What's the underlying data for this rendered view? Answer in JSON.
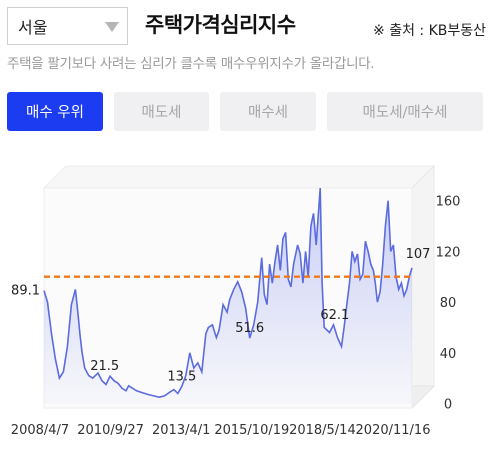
{
  "header": {
    "region": "서울",
    "title": "주택가격심리지수",
    "source": "※ 출처 : KB부동산",
    "description": "주택을 팔기보다 사려는 심리가 클수록 매수우위지수가 올라갑니다."
  },
  "tabs": [
    {
      "label": "매수 우위",
      "active": true
    },
    {
      "label": "매도세",
      "active": false
    },
    {
      "label": "매수세",
      "active": false
    },
    {
      "label": "매도세/매수세",
      "active": false
    }
  ],
  "colors": {
    "accent": "#1b3cf0",
    "line": "#5b6be0",
    "reference": "#f07818"
  },
  "chart_data": {
    "type": "area",
    "x_tick_labels": [
      "2008/4/7",
      "2010/9/27",
      "2013/4/1",
      "2015/10/19",
      "2018/5/14",
      "2020/11/16"
    ],
    "x_domain": [
      2008.27,
      2022.1
    ],
    "y_ticks": [
      0,
      40,
      80,
      120,
      160
    ],
    "ylim": [
      0,
      170
    ],
    "reference_line": 100,
    "annotations": [
      {
        "x": 2008.27,
        "y": 89.1,
        "label": "89.1"
      },
      {
        "x": 2010.55,
        "y": 21.5,
        "label": "21.5"
      },
      {
        "x": 2013.45,
        "y": 13.5,
        "label": "13.5"
      },
      {
        "x": 2016.0,
        "y": 51.6,
        "label": "51.6"
      },
      {
        "x": 2019.2,
        "y": 62.1,
        "label": "62.1"
      },
      {
        "x": 2022.1,
        "y": 107,
        "label": "107"
      }
    ],
    "series": [
      {
        "x": [
          2008.27,
          2008.4,
          2008.55,
          2008.7,
          2008.85,
          2009.0,
          2009.15,
          2009.3,
          2009.45,
          2009.55,
          2009.62,
          2009.7,
          2009.8,
          2009.95,
          2010.1,
          2010.3,
          2010.45,
          2010.6,
          2010.75,
          2010.9,
          2011.05,
          2011.2,
          2011.35,
          2011.45,
          2011.6,
          2011.75,
          2011.9,
          2012.05,
          2012.2,
          2012.4,
          2012.6,
          2012.8,
          2013.0,
          2013.15,
          2013.3,
          2013.45,
          2013.6,
          2013.75,
          2013.9,
          2014.05,
          2014.2,
          2014.35,
          2014.45,
          2014.6,
          2014.75,
          2014.85,
          2015.0,
          2015.15,
          2015.25,
          2015.4,
          2015.55,
          2015.7,
          2015.85,
          2016.0,
          2016.15,
          2016.3,
          2016.45,
          2016.55,
          2016.65,
          2016.75,
          2016.85,
          2016.95,
          2017.05,
          2017.15,
          2017.25,
          2017.35,
          2017.45,
          2017.55,
          2017.65,
          2017.8,
          2017.9,
          2018.0,
          2018.1,
          2018.2,
          2018.3,
          2018.4,
          2018.5,
          2018.55,
          2018.65,
          2018.72,
          2018.8,
          2018.9,
          2019.0,
          2019.15,
          2019.3,
          2019.45,
          2019.55,
          2019.65,
          2019.75,
          2019.85,
          2019.95,
          2020.05,
          2020.15,
          2020.25,
          2020.35,
          2020.45,
          2020.55,
          2020.65,
          2020.72,
          2020.8,
          2020.9,
          2021.0,
          2021.1,
          2021.2,
          2021.3,
          2021.4,
          2021.5,
          2021.6,
          2021.7,
          2021.8,
          2021.9,
          2022.0,
          2022.1
        ],
        "y": [
          89.1,
          80,
          55,
          35,
          20,
          25,
          45,
          78,
          90,
          70,
          55,
          40,
          28,
          22,
          20,
          24,
          18,
          15,
          21.5,
          18,
          16,
          12,
          10,
          14,
          12,
          10,
          9,
          8,
          7,
          6,
          5,
          6,
          9,
          11,
          8,
          13.5,
          22,
          40,
          28,
          32,
          25,
          55,
          60,
          62,
          52,
          58,
          78,
          72,
          82,
          90,
          96,
          88,
          75,
          51.6,
          62,
          80,
          115,
          86,
          78,
          110,
          95,
          112,
          125,
          105,
          130,
          135,
          98,
          92,
          110,
          125,
          118,
          95,
          120,
          100,
          140,
          150,
          125,
          140,
          170,
          95,
          60,
          58,
          56,
          62.1,
          52,
          45,
          60,
          78,
          95,
          120,
          112,
          118,
          98,
          102,
          128,
          120,
          110,
          105,
          95,
          80,
          88,
          110,
          140,
          160,
          120,
          125,
          100,
          90,
          95,
          85,
          90,
          100,
          107
        ]
      }
    ]
  }
}
